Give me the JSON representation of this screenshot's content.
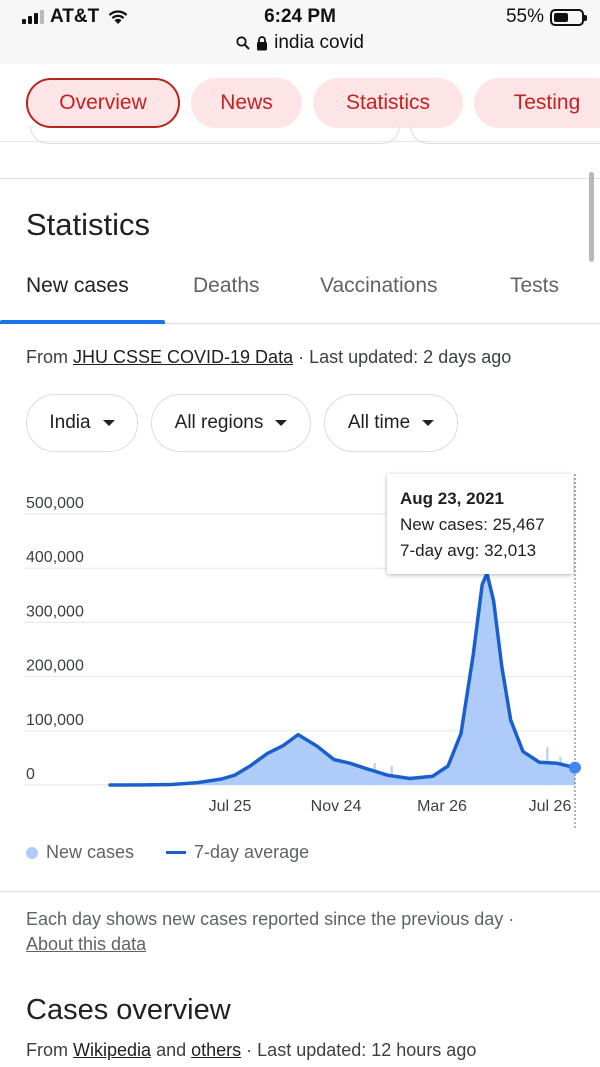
{
  "status_bar": {
    "carrier": "AT&T",
    "time": "6:24 PM",
    "battery": "55%",
    "battery_level": 0.55,
    "url": "india covid"
  },
  "chips": [
    {
      "label": "Overview",
      "active": true
    },
    {
      "label": "News"
    },
    {
      "label": "Statistics"
    },
    {
      "label": "Testing"
    }
  ],
  "section": {
    "title": "Statistics",
    "tabs": [
      "New cases",
      "Deaths",
      "Vaccinations",
      "Tests"
    ],
    "active_tab": 0
  },
  "source": {
    "prefix": "From",
    "link": "JHU CSSE COVID-19 Data",
    "updated": "· Last updated: 2 days ago"
  },
  "filters": {
    "country": "India",
    "region": "All regions",
    "range": "All time"
  },
  "chart_data": {
    "type": "area",
    "y_ticks": [
      "500,000",
      "400,000",
      "300,000",
      "200,000",
      "100,000",
      "0"
    ],
    "x_ticks": [
      "Jul 25",
      "Nov 24",
      "Mar 26",
      "Jul 26"
    ],
    "ylim": [
      0,
      500000
    ],
    "x_range": [
      "2020-01-30",
      "2021-08-23"
    ],
    "avg_points": [
      [
        "2020-01-30",
        0
      ],
      [
        "2020-03-15",
        200
      ],
      [
        "2020-04-15",
        1000
      ],
      [
        "2020-05-15",
        4000
      ],
      [
        "2020-06-15",
        11000
      ],
      [
        "2020-07-01",
        18000
      ],
      [
        "2020-07-20",
        35000
      ],
      [
        "2020-08-10",
        58000
      ],
      [
        "2020-08-30",
        73000
      ],
      [
        "2020-09-17",
        93000
      ],
      [
        "2020-10-10",
        72000
      ],
      [
        "2020-10-31",
        47000
      ],
      [
        "2020-11-20",
        40000
      ],
      [
        "2020-12-10",
        30000
      ],
      [
        "2021-01-05",
        18000
      ],
      [
        "2021-02-01",
        12000
      ],
      [
        "2021-03-01",
        16000
      ],
      [
        "2021-03-20",
        35000
      ],
      [
        "2021-04-05",
        95000
      ],
      [
        "2021-04-20",
        240000
      ],
      [
        "2021-05-01",
        370000
      ],
      [
        "2021-05-07",
        390000
      ],
      [
        "2021-05-15",
        340000
      ],
      [
        "2021-05-25",
        220000
      ],
      [
        "2021-06-05",
        120000
      ],
      [
        "2021-06-20",
        62000
      ],
      [
        "2021-07-10",
        42000
      ],
      [
        "2021-08-01",
        40000
      ],
      [
        "2021-08-23",
        32013
      ]
    ],
    "spike_points": [
      [
        "2020-12-20",
        40000
      ],
      [
        "2021-01-10",
        35000
      ],
      [
        "2021-07-20",
        70000
      ],
      [
        "2021-08-05",
        52000
      ]
    ],
    "tooltip": {
      "date": "Aug 23, 2021",
      "new_cases": "New cases: 25,467",
      "avg": "7-day avg: 32,013"
    },
    "legend": {
      "new_cases": "New cases",
      "avg": "7-day average"
    },
    "colors": {
      "area": "#aecbfa",
      "line": "#1a5fcc",
      "grid": "#e6e6e6"
    }
  },
  "note": {
    "text": "Each day shows new cases reported since the previous day ·",
    "link": "About this data"
  },
  "cases_overview": {
    "title": "Cases overview",
    "prefix": "From",
    "link1": "Wikipedia",
    "and": "and",
    "link2": "others",
    "updated": "· Last updated: 12 hours ago"
  }
}
